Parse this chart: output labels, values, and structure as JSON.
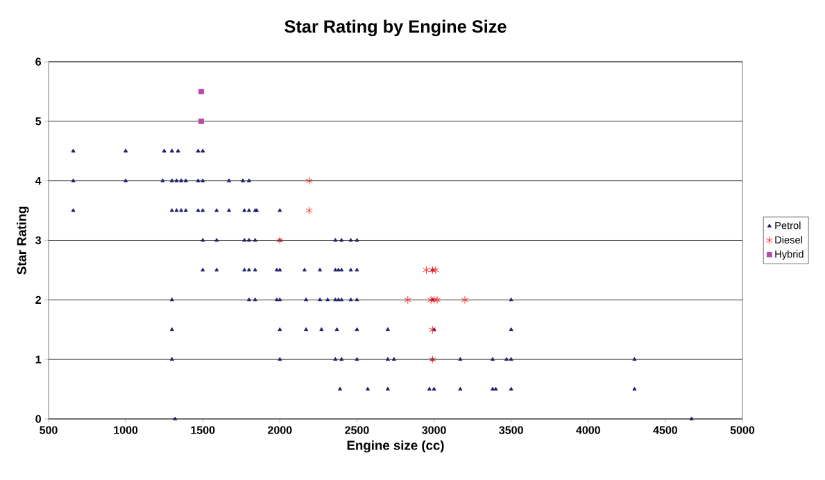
{
  "chart_data": {
    "type": "scatter",
    "title": "Star Rating by Engine Size",
    "xlabel": "Engine size (cc)",
    "ylabel": "Star Rating",
    "xlim": [
      500,
      5000
    ],
    "xticks": [
      500,
      1000,
      1500,
      2000,
      2500,
      3000,
      3500,
      4000,
      4500,
      5000
    ],
    "ylim": [
      0,
      6
    ],
    "yticks": [
      0,
      1,
      2,
      3,
      4,
      5,
      6
    ],
    "grid": "y",
    "legend": "right",
    "series": [
      {
        "name": "Petrol",
        "color": "#1f1f6b",
        "marker": "triangle",
        "x": [
          660,
          1000,
          1250,
          1300,
          1340,
          1470,
          1500,
          660,
          1000,
          1240,
          1300,
          1330,
          1360,
          1390,
          1470,
          1500,
          1670,
          1760,
          1800,
          660,
          1300,
          1330,
          1360,
          1390,
          1470,
          1500,
          1590,
          1670,
          1770,
          1800,
          1840,
          1850,
          2000,
          1500,
          1590,
          1770,
          1800,
          1840,
          2000,
          2360,
          2400,
          2460,
          2500,
          1500,
          1590,
          1770,
          1800,
          1840,
          1980,
          2000,
          2160,
          2260,
          2360,
          2380,
          2400,
          2460,
          2500,
          2990,
          1300,
          1800,
          1840,
          1980,
          2000,
          2170,
          2260,
          2310,
          2360,
          2380,
          2400,
          2460,
          2500,
          2990,
          3500,
          1300,
          2000,
          2170,
          2270,
          2370,
          2500,
          2700,
          3000,
          3500,
          1300,
          2000,
          2360,
          2400,
          2500,
          2700,
          2740,
          2990,
          3170,
          3380,
          3470,
          3500,
          4300,
          2390,
          2570,
          2700,
          2970,
          3000,
          3170,
          3380,
          3400,
          3500,
          4300,
          1320,
          4670
        ],
        "values": [
          4.5,
          4.5,
          4.5,
          4.5,
          4.5,
          4.5,
          4.5,
          4,
          4,
          4,
          4,
          4,
          4,
          4,
          4,
          4,
          4,
          4,
          4,
          3.5,
          3.5,
          3.5,
          3.5,
          3.5,
          3.5,
          3.5,
          3.5,
          3.5,
          3.5,
          3.5,
          3.5,
          3.5,
          3.5,
          3,
          3,
          3,
          3,
          3,
          3,
          3,
          3,
          3,
          3,
          2.5,
          2.5,
          2.5,
          2.5,
          2.5,
          2.5,
          2.5,
          2.5,
          2.5,
          2.5,
          2.5,
          2.5,
          2.5,
          2.5,
          2.5,
          2,
          2,
          2,
          2,
          2,
          2,
          2,
          2,
          2,
          2,
          2,
          2,
          2,
          2,
          2,
          1.5,
          1.5,
          1.5,
          1.5,
          1.5,
          1.5,
          1.5,
          1.5,
          1.5,
          1,
          1,
          1,
          1,
          1,
          1,
          1,
          1,
          1,
          1,
          1,
          1,
          1,
          0.5,
          0.5,
          0.5,
          0.5,
          0.5,
          0.5,
          0.5,
          0.5,
          0.5,
          0.5,
          0,
          0
        ]
      },
      {
        "name": "Diesel",
        "color": "#ff2020",
        "marker": "cross",
        "x": [
          2190,
          2190,
          2000,
          2950,
          2990,
          3010,
          2830,
          2980,
          3000,
          3020,
          3200,
          2990,
          2990
        ],
        "values": [
          4,
          3.5,
          3,
          2.5,
          2.5,
          2.5,
          2,
          2,
          2,
          2,
          2,
          1.5,
          1
        ]
      },
      {
        "name": "Hybrid",
        "color": "#b94ba6",
        "marker": "square",
        "x": [
          1490,
          1490
        ],
        "values": [
          5.5,
          5
        ]
      }
    ]
  }
}
